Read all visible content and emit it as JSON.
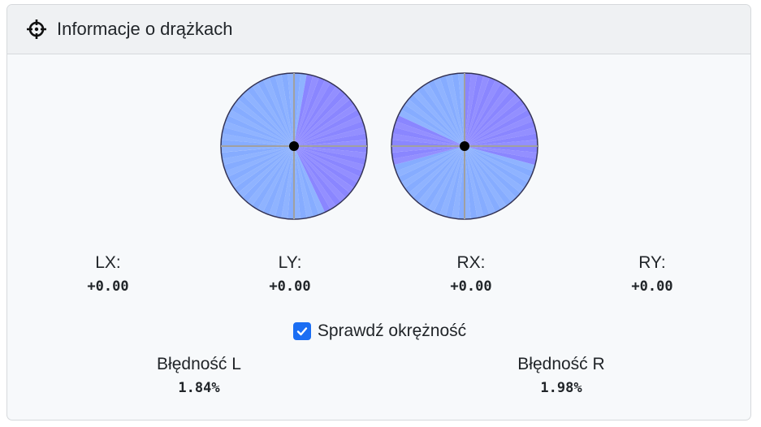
{
  "header": {
    "title": "Informacje o drążkach",
    "icon": "crosshair-icon"
  },
  "sticks": {
    "left": {
      "pos_x": 0.0,
      "pos_y": 0.0
    },
    "right": {
      "pos_x": 0.0,
      "pos_y": 0.0
    },
    "colors": {
      "base": "#86acff",
      "highlight": "#8a86ff",
      "outline": "#333355",
      "crosshair": "#a0a0a0",
      "dot": "#000000"
    }
  },
  "axes": [
    {
      "label": "LX:",
      "value": "+0.00"
    },
    {
      "label": "LY:",
      "value": "+0.00"
    },
    {
      "label": "RX:",
      "value": "+0.00"
    },
    {
      "label": "RY:",
      "value": "+0.00"
    }
  ],
  "circularity": {
    "checked": true,
    "label": "Sprawdź okrężność"
  },
  "errors": [
    {
      "label": "Błędność L",
      "value": "1.84%"
    },
    {
      "label": "Błędność R",
      "value": "1.98%"
    }
  ]
}
